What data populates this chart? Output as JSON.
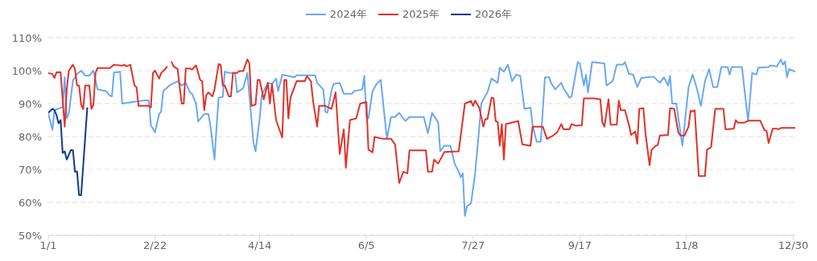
{
  "chart_data": {
    "type": "line",
    "legend": "top",
    "grid": "y",
    "xlim": [
      "--01-01",
      "--12-31"
    ],
    "xticks": [
      {
        "value": "--01-01",
        "label": "1/1"
      },
      {
        "value": "--02-22",
        "label": "2/22"
      },
      {
        "value": "--04-14",
        "label": "4/14"
      },
      {
        "value": "--06-05",
        "label": "6/5"
      },
      {
        "value": "--07-27",
        "label": "7/27"
      },
      {
        "value": "--09-17",
        "label": "9/17"
      },
      {
        "value": "--11-08",
        "label": "11/8"
      },
      {
        "value": "--12-30",
        "label": "12/30"
      }
    ],
    "ylim": [
      50,
      110
    ],
    "yticks": [
      {
        "value": 50,
        "label": "50%"
      },
      {
        "value": 60,
        "label": "60%"
      },
      {
        "value": 70,
        "label": "70%"
      },
      {
        "value": 80,
        "label": "80%"
      },
      {
        "value": 90,
        "label": "90%"
      },
      {
        "value": 100,
        "label": "100%"
      },
      {
        "value": 110,
        "label": "110%"
      }
    ],
    "series": [
      {
        "name": "2024年",
        "color": "#69a8f5",
        "x": [
          "--01-01",
          "--01-03",
          "--01-04",
          "--01-08",
          "--01-09",
          "--01-10",
          "--01-11",
          "--01-13",
          "--01-15",
          "--01-17",
          "--01-19",
          "--01-21",
          "--01-23",
          "--01-25",
          "--01-29",
          "--01-31",
          "--02-01",
          "--02-02",
          "--02-05",
          "--02-06",
          "--02-11",
          "--02-17",
          "--02-19",
          "--02-20",
          "--02-22",
          "--02-24",
          "--02-25",
          "--02-26",
          "--03-01",
          "--03-05",
          "--03-07",
          "--03-09",
          "--03-11",
          "--03-12",
          "--03-14",
          "--03-15",
          "--03-18",
          "--03-20",
          "--03-21",
          "--03-23",
          "--03-24",
          "--03-25",
          "--03-27",
          "--03-28",
          "--03-30",
          "--04-02",
          "--04-03",
          "--04-06",
          "--04-08",
          "--04-09",
          "--04-11",
          "--04-12",
          "--04-14",
          "--04-15",
          "--04-18",
          "--04-20",
          "--04-22",
          "--04-23",
          "--04-25",
          "--05-01",
          "--05-02",
          "--05-11",
          "--05-12",
          "--05-15",
          "--05-16",
          "--05-17",
          "--05-19",
          "--05-20",
          "--05-23",
          "--05-25",
          "--05-29",
          "--05-30",
          "--06-03",
          "--06-04",
          "--06-05",
          "--06-06",
          "--06-08",
          "--06-10",
          "--06-12",
          "--06-13",
          "--06-15",
          "--06-17",
          "--06-19",
          "--06-21",
          "--06-24",
          "--06-26",
          "--07-03",
          "--07-05",
          "--07-07",
          "--07-10",
          "--07-11",
          "--07-13",
          "--07-16",
          "--07-18",
          "--07-20",
          "--07-21",
          "--07-22",
          "--07-23",
          "--07-24",
          "--07-26",
          "--07-28",
          "--07-30",
          "--07-31",
          "--08-01",
          "--08-03",
          "--08-05",
          "--08-08",
          "--08-09",
          "--08-11",
          "--08-13",
          "--08-15",
          "--08-17",
          "--08-19",
          "--08-21",
          "--08-24",
          "--08-25",
          "--08-27",
          "--08-29",
          "--08-31",
          "--09-02",
          "--09-03",
          "--09-05",
          "--09-08",
          "--09-09",
          "--09-12",
          "--09-13",
          "--09-16",
          "--09-17",
          "--09-19",
          "--09-20",
          "--09-21",
          "--09-23",
          "--09-29",
          "--09-30",
          "--10-03",
          "--10-05",
          "--10-08",
          "--10-09",
          "--10-11",
          "--10-13",
          "--10-15",
          "--10-17",
          "--10-23",
          "--10-26",
          "--10-28",
          "--10-30",
          "--10-31",
          "--11-01",
          "--11-03",
          "--11-06",
          "--11-09",
          "--11-11",
          "--11-13",
          "--11-15",
          "--11-17",
          "--11-19",
          "--11-21",
          "--11-23",
          "--11-25",
          "--11-28",
          "--11-29",
          "--11-30",
          "--12-05",
          "--12-08",
          "--12-10",
          "--12-12",
          "--12-13",
          "--12-18",
          "--12-19",
          "--12-22",
          "--12-24",
          "--12-25",
          "--12-26",
          "--12-27",
          "--12-28",
          "--12-31"
        ],
        "values": [
          87,
          82,
          88,
          89,
          98,
          85.5,
          87,
          97,
          99,
          100,
          98.5,
          98.5,
          100,
          94.3,
          93.8,
          92.4,
          92.2,
          99.4,
          99.7,
          90,
          90.5,
          91,
          91,
          83.4,
          81.3,
          86.8,
          87.6,
          93.8,
          95.5,
          96.8,
          95.5,
          96.3,
          93.4,
          93,
          90,
          84.6,
          86.8,
          86.8,
          83.4,
          73,
          83,
          91.8,
          92,
          99.7,
          99.3,
          99.3,
          93.4,
          94.7,
          99.3,
          92.6,
          78,
          75.5,
          85.5,
          92.6,
          96.3,
          96,
          97.6,
          93.8,
          98.8,
          98,
          98.6,
          98.6,
          96.3,
          94.3,
          87.6,
          87.2,
          93.8,
          96,
          96.3,
          93,
          93,
          93.8,
          94.3,
          98.4,
          85.9,
          85.5,
          93.8,
          96,
          97.2,
          91.3,
          79.3,
          85.9,
          85.9,
          87.2,
          84.7,
          85.9,
          85.9,
          81,
          87.2,
          84.3,
          75.5,
          77.2,
          77.2,
          71.8,
          69.3,
          67.6,
          68.8,
          55.9,
          58.8,
          59.7,
          68.8,
          82.6,
          90,
          91.3,
          93.4,
          97.6,
          96.3,
          100.9,
          99.7,
          101.8,
          96.8,
          98.8,
          98.4,
          88.4,
          88.8,
          83.4,
          78.4,
          78.4,
          98,
          98,
          96.3,
          94.3,
          96.3,
          94.7,
          91.8,
          92.2,
          102.6,
          102.2,
          95.5,
          98.8,
          93.4,
          102.6,
          102.2,
          95.5,
          96.8,
          101.8,
          101.8,
          102.6,
          99,
          98.8,
          95,
          97.8,
          98.2,
          96.3,
          98,
          95.5,
          98.4,
          90,
          90,
          77.2,
          95,
          98.8,
          94.7,
          89.3,
          96.8,
          100.5,
          95,
          95,
          101.1,
          101.1,
          98.8,
          101.1,
          101.1,
          84.7,
          99.3,
          98.8,
          100.9,
          101.1,
          101.6,
          101.3,
          103.4,
          101.8,
          102.8,
          98,
          100.5,
          99.7
        ]
      },
      {
        "name": "2025年",
        "color": "#e0322a",
        "x": [
          "--01-01",
          "--01-03",
          "--01-04",
          "--01-05",
          "--01-07",
          "--01-09",
          "--01-10",
          "--01-11",
          "--01-13",
          "--01-14",
          "--01-15",
          "--01-16",
          "--01-17",
          "--01-18",
          "--01-19",
          "--01-21",
          "--01-22",
          "--01-23",
          "--01-24",
          "--01-25",
          "--01-31",
          "--02-02",
          "--02-06",
          "--02-07",
          "--02-08",
          "--02-10",
          "--02-12",
          "--02-13",
          "--02-14",
          "--02-19",
          "--02-20",
          "--02-21",
          "--02-22",
          "--02-24",
          "--02-25",
          "--02-27",
          "--02-28",
          "--03-01",
          "--03-02",
          "--03-03",
          "--03-05",
          "--03-07",
          "--03-08",
          "--03-09",
          "--03-11",
          "--03-12",
          "--03-14",
          "--03-16",
          "--03-17",
          "--03-18",
          "--03-19",
          "--03-20",
          "--03-22",
          "--03-23",
          "--03-25",
          "--03-26",
          "--03-27",
          "--03-28",
          "--03-30",
          "--03-31",
          "--04-01",
          "--04-03",
          "--04-04",
          "--04-06",
          "--04-08",
          "--04-09",
          "--04-10",
          "--04-12",
          "--04-13",
          "--04-14",
          "--04-16",
          "--04-18",
          "--04-19",
          "--04-20",
          "--04-22",
          "--04-25",
          "--04-26",
          "--04-27",
          "--04-28",
          "--04-29",
          "--05-02",
          "--05-06",
          "--05-07",
          "--05-09",
          "--05-10",
          "--05-12",
          "--05-13",
          "--05-16",
          "--05-19",
          "--05-21",
          "--05-23",
          "--05-25",
          "--05-26",
          "--05-28",
          "--05-31",
          "--06-02",
          "--06-05",
          "--06-06",
          "--06-08",
          "--06-09",
          "--06-13",
          "--06-17",
          "--06-19",
          "--06-21",
          "--06-23",
          "--06-25",
          "--06-26",
          "--07-04",
          "--07-05",
          "--07-07",
          "--07-08",
          "--07-10",
          "--07-13",
          "--07-20",
          "--07-23",
          "--07-26",
          "--07-27",
          "--07-28",
          "--07-30",
          "--08-01",
          "--08-02",
          "--08-03",
          "--08-05",
          "--08-06",
          "--08-07",
          "--08-08",
          "--08-09",
          "--08-10",
          "--08-11",
          "--08-12",
          "--08-18",
          "--08-20",
          "--08-24",
          "--08-25",
          "--08-30",
          "--09-01",
          "--09-04",
          "--09-06",
          "--09-08",
          "--09-09",
          "--09-12",
          "--09-13",
          "--09-15",
          "--09-18",
          "--09-19",
          "--09-24",
          "--09-27",
          "--09-28",
          "--09-29",
          "--10-01",
          "--10-02",
          "--10-05",
          "--10-06",
          "--10-07",
          "--10-09",
          "--10-11",
          "--10-12",
          "--10-14",
          "--10-15",
          "--10-16",
          "--10-18",
          "--10-19",
          "--10-21",
          "--10-22",
          "--10-24",
          "--10-25",
          "--10-26",
          "--10-30",
          "--10-31",
          "--11-02",
          "--11-04",
          "--11-05",
          "--11-07",
          "--11-09",
          "--11-10",
          "--11-11",
          "--11-12",
          "--11-14",
          "--11-17",
          "--11-18",
          "--11-20",
          "--11-22",
          "--11-26",
          "--11-27",
          "--12-01",
          "--12-02",
          "--12-03",
          "--12-06",
          "--12-08",
          "--12-14",
          "--12-16",
          "--12-17",
          "--12-18",
          "--12-20",
          "--12-22",
          "--12-23",
          "--12-24",
          "--12-31"
        ],
        "values": [
          99.3,
          99,
          97.8,
          99.5,
          99.5,
          83,
          94.3,
          100,
          101.8,
          100.5,
          95.5,
          95.5,
          89.7,
          88.3,
          95.5,
          95.5,
          88.4,
          89.7,
          99.3,
          100.8,
          100.8,
          101.8,
          101.5,
          101.8,
          101.3,
          101.8,
          95.5,
          95,
          89.3,
          89.3,
          88.8,
          99.3,
          100,
          97.6,
          99.3,
          100.5,
          101.3,
          null,
          102.8,
          101.3,
          100.5,
          90,
          90,
          100.7,
          100.7,
          100.3,
          101.6,
          97.2,
          96.8,
          88,
          92.6,
          93.4,
          92.2,
          94.3,
          102,
          101.8,
          95.5,
          95.5,
          92.2,
          92.2,
          99.3,
          99.3,
          99.9,
          99.9,
          103.4,
          102.2,
          89.3,
          89.7,
          97.2,
          97.2,
          91.3,
          96.3,
          90,
          96,
          85,
          79.7,
          97.2,
          97.2,
          85.5,
          91.8,
          96.8,
          96.8,
          98.3,
          96.8,
          90.9,
          83,
          89.3,
          89.3,
          88.4,
          93.4,
          74.7,
          82.2,
          70.5,
          85,
          85.5,
          90,
          90.5,
          76,
          75.2,
          79.9,
          79.3,
          79.3,
          77.6,
          65.9,
          69.3,
          68.8,
          75.8,
          75.8,
          69.3,
          69.3,
          73,
          71.8,
          75.3,
          75.5,
          90,
          90.8,
          89.3,
          90.9,
          88.8,
          83,
          85.3,
          85.3,
          91.8,
          91.6,
          84.7,
          84.4,
          77.2,
          83.8,
          73,
          83.8,
          84.7,
          77.6,
          77.2,
          83,
          83,
          79.3,
          80.3,
          81.3,
          83.8,
          82.2,
          82.2,
          83.8,
          83.3,
          83.4,
          91.6,
          91.6,
          91.3,
          84.3,
          83,
          91.3,
          83.6,
          83.6,
          90.9,
          88,
          88,
          83.4,
          80.5,
          81.5,
          77.8,
          88.4,
          88.6,
          81,
          71.3,
          76,
          77.2,
          77.4,
          80.3,
          80.5,
          88.6,
          88.4,
          81.3,
          80.3,
          80.3,
          83,
          87.8,
          87.6,
          88,
          68,
          68,
          76,
          76.8,
          88.4,
          88.4,
          82.2,
          82.4,
          85,
          84.2,
          84.2,
          84.8,
          84.8,
          81.9,
          81.8,
          78,
          82.4,
          82.4,
          82.2,
          82.6,
          82.6
        ]
      },
      {
        "name": "2026年",
        "color": "#0d3a8c",
        "x": [
          "--01-01",
          "--01-03",
          "--01-04",
          "--01-05",
          "--01-06",
          "--01-07",
          "--01-08",
          "--01-09",
          "--01-10",
          "--01-12",
          "--01-13",
          "--01-14",
          "--01-15",
          "--01-16",
          "--01-17",
          "--01-20"
        ],
        "values": [
          87.2,
          88.4,
          88,
          86.5,
          84,
          85,
          75,
          75.5,
          73,
          75.9,
          75.8,
          69.3,
          69.4,
          62.2,
          62.2,
          88.8
        ]
      }
    ]
  }
}
